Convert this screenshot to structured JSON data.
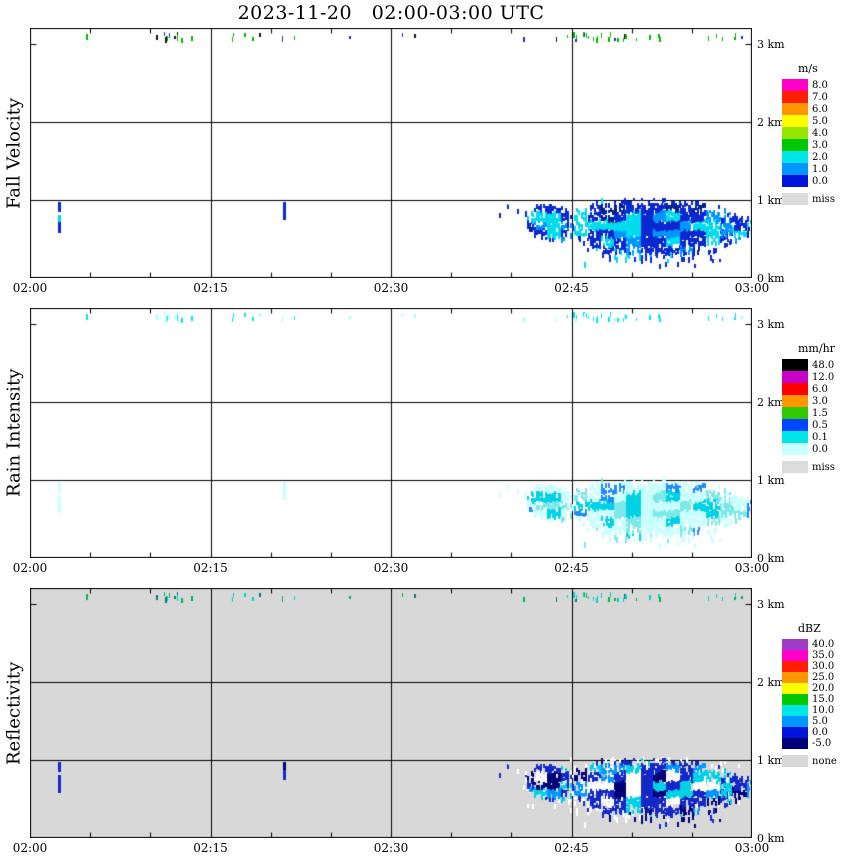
{
  "title": "2023-11-20   02:00-03:00 UTC",
  "chart_data": [
    {
      "type": "heatmap",
      "name": "fall_velocity",
      "ylabel": "Fall Velocity",
      "x_ticks": [
        "02:00",
        "02:15",
        "02:30",
        "02:45",
        "03:00"
      ],
      "x_tick_minutes": [
        0,
        15,
        30,
        45,
        60
      ],
      "x_range_minutes": [
        0,
        60
      ],
      "y_ticks": [
        "0 km",
        "1 km",
        "2 km",
        "3 km"
      ],
      "y_tick_km": [
        0,
        1,
        2,
        3
      ],
      "y_range_km": [
        0,
        3.2
      ],
      "grid_minutes": [
        15,
        30,
        45
      ],
      "grid_km": [
        1,
        2
      ],
      "minor_tick_minutes": 5,
      "background": "#ffffff",
      "colorbar": {
        "units": "m/s",
        "entries": [
          {
            "label": "8.0",
            "color": "#ff00c8"
          },
          {
            "label": "7.0",
            "color": "#ff1e00"
          },
          {
            "label": "6.0",
            "color": "#ff9600"
          },
          {
            "label": "5.0",
            "color": "#ffff00"
          },
          {
            "label": "4.0",
            "color": "#96e600"
          },
          {
            "label": "3.0",
            "color": "#00c800"
          },
          {
            "label": "2.0",
            "color": "#00e6e6"
          },
          {
            "label": "1.0",
            "color": "#0096ff"
          },
          {
            "label": "0.0",
            "color": "#0014dc"
          }
        ],
        "missing": {
          "label": "miss",
          "color": "#dcdcdc"
        }
      },
      "features": [
        {
          "kind": "band",
          "t0": 0.4,
          "t1": 59.6,
          "h": 3.08,
          "h_jitter": 0.04,
          "count": 55,
          "seed": 11,
          "colors": [
            [
              "#00b400",
              0.72
            ],
            [
              "#1432c8",
              0.16
            ],
            [
              "#101010",
              0.12
            ]
          ]
        },
        {
          "kind": "streak",
          "t": 2.3,
          "h0": 0.58,
          "h1": 0.97,
          "w": 3,
          "segs": [
            [
              "#0a28d2",
              0.3
            ],
            [
              "none",
              0.12
            ],
            [
              "#00dcec",
              0.24
            ],
            [
              "#0a28d2",
              0.34
            ]
          ]
        },
        {
          "kind": "streak",
          "t": 21.0,
          "h0": 0.74,
          "h1": 0.97,
          "w": 3,
          "segs": [
            [
              "#0a28d2",
              1
            ]
          ]
        },
        {
          "kind": "band",
          "t0": 38.0,
          "t1": 41.2,
          "h": 0.84,
          "h_jitter": 0.1,
          "count": 6,
          "seed": 21,
          "colors": [
            [
              "#0a28d2",
              1
            ]
          ]
        },
        {
          "kind": "blob",
          "t0": 41.3,
          "t1": 44.9,
          "h0": 0.5,
          "h1": 0.98,
          "density": 0.72,
          "seed": 31,
          "colors": [
            [
              "#0a28d2",
              0.5
            ],
            [
              "#0096ff",
              0.16
            ],
            [
              "#00dcec",
              0.24
            ],
            [
              "#001e96",
              0.1
            ]
          ]
        },
        {
          "kind": "blob",
          "t0": 44.6,
          "t1": 58.6,
          "h0": 0.3,
          "h1": 1.04,
          "density": 0.8,
          "seed": 41,
          "colors": [
            [
              "#0a28d2",
              0.5
            ],
            [
              "#0096ff",
              0.16
            ],
            [
              "#00dcec",
              0.24
            ],
            [
              "#001e96",
              0.1
            ]
          ]
        },
        {
          "kind": "blob",
          "t0": 57.0,
          "t1": 60.0,
          "h0": 0.5,
          "h1": 0.85,
          "density": 0.55,
          "seed": 51,
          "colors": [
            [
              "#0a28d2",
              0.5
            ],
            [
              "#0096ff",
              0.16
            ],
            [
              "#00dcec",
              0.24
            ],
            [
              "#001e96",
              0.1
            ]
          ]
        },
        {
          "kind": "blob",
          "t0": 46.0,
          "t1": 58.0,
          "h0": 0.18,
          "h1": 0.42,
          "density": 0.1,
          "seed": 61,
          "colors": [
            [
              "#0a28d2",
              0.6
            ],
            [
              "#00dcec",
              0.4
            ]
          ]
        }
      ]
    },
    {
      "type": "heatmap",
      "name": "rain_intensity",
      "ylabel": "Rain Intensity",
      "x_ticks": [
        "02:00",
        "02:15",
        "02:30",
        "02:45",
        "03:00"
      ],
      "x_tick_minutes": [
        0,
        15,
        30,
        45,
        60
      ],
      "x_range_minutes": [
        0,
        60
      ],
      "y_ticks": [
        "0 km",
        "1 km",
        "2 km",
        "3 km"
      ],
      "y_tick_km": [
        0,
        1,
        2,
        3
      ],
      "y_range_km": [
        0,
        3.2
      ],
      "grid_minutes": [
        15,
        30,
        45
      ],
      "grid_km": [
        1,
        2
      ],
      "minor_tick_minutes": 5,
      "background": "#ffffff",
      "colorbar": {
        "units": "mm/hr",
        "entries": [
          {
            "label": "48.0",
            "color": "#000000"
          },
          {
            "label": "12.0",
            "color": "#c800c8"
          },
          {
            "label": "6.0",
            "color": "#ff0000"
          },
          {
            "label": "3.0",
            "color": "#ff9600"
          },
          {
            "label": "1.5",
            "color": "#32c800"
          },
          {
            "label": "0.5",
            "color": "#0046ff"
          },
          {
            "label": "0.1",
            "color": "#00e6e6"
          },
          {
            "label": "0.0",
            "color": "#c8ffff"
          }
        ],
        "missing": {
          "label": "miss",
          "color": "#dcdcdc"
        }
      },
      "features": [
        {
          "kind": "band",
          "t0": 0.4,
          "t1": 59.6,
          "h": 3.08,
          "h_jitter": 0.04,
          "count": 55,
          "seed": 11,
          "colors": [
            [
              "#00e6e6",
              0.75
            ],
            [
              "#a0ffff",
              0.25
            ]
          ]
        },
        {
          "kind": "streak",
          "t": 2.3,
          "h0": 0.58,
          "h1": 0.97,
          "w": 3,
          "segs": [
            [
              "#c8ffff",
              0.3
            ],
            [
              "none",
              0.12
            ],
            [
              "#c8ffff",
              0.58
            ]
          ]
        },
        {
          "kind": "streak",
          "t": 21.0,
          "h0": 0.74,
          "h1": 0.97,
          "w": 3,
          "segs": [
            [
              "#c8ffff",
              1
            ]
          ]
        },
        {
          "kind": "band",
          "t0": 38.0,
          "t1": 41.2,
          "h": 0.84,
          "h_jitter": 0.1,
          "count": 6,
          "seed": 21,
          "colors": [
            [
              "#c8ffff",
              1
            ]
          ]
        },
        {
          "kind": "blob",
          "t0": 41.3,
          "t1": 44.9,
          "h0": 0.5,
          "h1": 0.98,
          "density": 0.72,
          "seed": 31,
          "colors": [
            [
              "#c8ffff",
              0.5
            ],
            [
              "#7de8e8",
              0.22
            ],
            [
              "#00d2e6",
              0.16
            ],
            [
              "#1e8cff",
              0.12
            ]
          ]
        },
        {
          "kind": "blob",
          "t0": 44.6,
          "t1": 58.6,
          "h0": 0.3,
          "h1": 1.04,
          "density": 0.8,
          "seed": 41,
          "colors": [
            [
              "#c8ffff",
              0.5
            ],
            [
              "#7de8e8",
              0.22
            ],
            [
              "#00d2e6",
              0.16
            ],
            [
              "#1e8cff",
              0.12
            ]
          ]
        },
        {
          "kind": "blob",
          "t0": 57.0,
          "t1": 60.0,
          "h0": 0.5,
          "h1": 0.85,
          "density": 0.55,
          "seed": 51,
          "colors": [
            [
              "#c8ffff",
              0.5
            ],
            [
              "#7de8e8",
              0.22
            ],
            [
              "#00d2e6",
              0.16
            ],
            [
              "#1e8cff",
              0.12
            ]
          ]
        },
        {
          "kind": "blob",
          "t0": 46.0,
          "t1": 58.0,
          "h0": 0.18,
          "h1": 0.42,
          "density": 0.1,
          "seed": 61,
          "colors": [
            [
              "#c8ffff",
              0.75
            ],
            [
              "#7de8e8",
              0.25
            ]
          ]
        }
      ]
    },
    {
      "type": "heatmap",
      "name": "reflectivity",
      "ylabel": "Reflectivity",
      "x_ticks": [
        "02:00",
        "02:15",
        "02:30",
        "02:45",
        "03:00"
      ],
      "x_tick_minutes": [
        0,
        15,
        30,
        45,
        60
      ],
      "x_range_minutes": [
        0,
        60
      ],
      "y_ticks": [
        "0 km",
        "1 km",
        "2 km",
        "3 km"
      ],
      "y_tick_km": [
        0,
        1,
        2,
        3
      ],
      "y_range_km": [
        0,
        3.2
      ],
      "grid_minutes": [
        15,
        30,
        45
      ],
      "grid_km": [
        1,
        2
      ],
      "minor_tick_minutes": 5,
      "background": "#d8d8d8",
      "colorbar": {
        "units": "dBZ",
        "entries": [
          {
            "label": "40.0",
            "color": "#a03cc8"
          },
          {
            "label": "35.0",
            "color": "#ff00c8"
          },
          {
            "label": "30.0",
            "color": "#ff1e00"
          },
          {
            "label": "25.0",
            "color": "#ff9600"
          },
          {
            "label": "20.0",
            "color": "#ffff00"
          },
          {
            "label": "15.0",
            "color": "#00c800"
          },
          {
            "label": "10.0",
            "color": "#00e6e6"
          },
          {
            "label": "5.0",
            "color": "#0096ff"
          },
          {
            "label": "0.0",
            "color": "#0014dc"
          },
          {
            "label": "-5.0",
            "color": "#000078"
          }
        ],
        "missing": {
          "label": "none",
          "color": "#d8d8d8"
        }
      },
      "features": [
        {
          "kind": "band",
          "t0": 0.4,
          "t1": 59.6,
          "h": 3.08,
          "h_jitter": 0.04,
          "count": 55,
          "seed": 11,
          "colors": [
            [
              "#00d2d2",
              0.55
            ],
            [
              "#00b450",
              0.3
            ],
            [
              "#007878",
              0.15
            ]
          ]
        },
        {
          "kind": "streak",
          "t": 2.3,
          "h0": 0.58,
          "h1": 0.97,
          "w": 3,
          "segs": [
            [
              "#1428c8",
              0.3
            ],
            [
              "none",
              0.12
            ],
            [
              "#1428c8",
              0.58
            ]
          ]
        },
        {
          "kind": "streak",
          "t": 21.0,
          "h0": 0.74,
          "h1": 0.97,
          "w": 3,
          "segs": [
            [
              "#000078",
              0.45
            ],
            [
              "#1428c8",
              0.55
            ]
          ]
        },
        {
          "kind": "band",
          "t0": 38.0,
          "t1": 41.2,
          "h": 0.84,
          "h_jitter": 0.1,
          "count": 6,
          "seed": 21,
          "colors": [
            [
              "#1428c8",
              0.7
            ],
            [
              "#ffffff",
              0.3
            ]
          ]
        },
        {
          "kind": "blob",
          "t0": 41.0,
          "t1": 59.5,
          "h0": 0.35,
          "h1": 1.05,
          "density": 0.25,
          "seed": 71,
          "colors": [
            [
              "#ffffff",
              1
            ]
          ]
        },
        {
          "kind": "blob",
          "t0": 41.3,
          "t1": 44.9,
          "h0": 0.5,
          "h1": 0.98,
          "density": 0.72,
          "seed": 31,
          "colors": [
            [
              "#1428c8",
              0.38
            ],
            [
              "#00d2e6",
              0.24
            ],
            [
              "#000078",
              0.14
            ],
            [
              "#ffffff",
              0.1
            ],
            [
              "#0096ff",
              0.14
            ]
          ]
        },
        {
          "kind": "blob",
          "t0": 44.6,
          "t1": 58.6,
          "h0": 0.3,
          "h1": 1.04,
          "density": 0.8,
          "seed": 41,
          "colors": [
            [
              "#1428c8",
              0.38
            ],
            [
              "#00d2e6",
              0.24
            ],
            [
              "#000078",
              0.14
            ],
            [
              "#ffffff",
              0.1
            ],
            [
              "#0096ff",
              0.14
            ]
          ]
        },
        {
          "kind": "blob",
          "t0": 57.0,
          "t1": 60.0,
          "h0": 0.5,
          "h1": 0.85,
          "density": 0.55,
          "seed": 51,
          "colors": [
            [
              "#1428c8",
              0.38
            ],
            [
              "#00d2e6",
              0.24
            ],
            [
              "#000078",
              0.14
            ],
            [
              "#ffffff",
              0.1
            ],
            [
              "#0096ff",
              0.14
            ]
          ]
        },
        {
          "kind": "blob",
          "t0": 46.0,
          "t1": 58.0,
          "h0": 0.18,
          "h1": 0.42,
          "density": 0.1,
          "seed": 61,
          "colors": [
            [
              "#000078",
              0.5
            ],
            [
              "#1428c8",
              0.25
            ],
            [
              "#ffffff",
              0.25
            ]
          ]
        }
      ]
    }
  ]
}
